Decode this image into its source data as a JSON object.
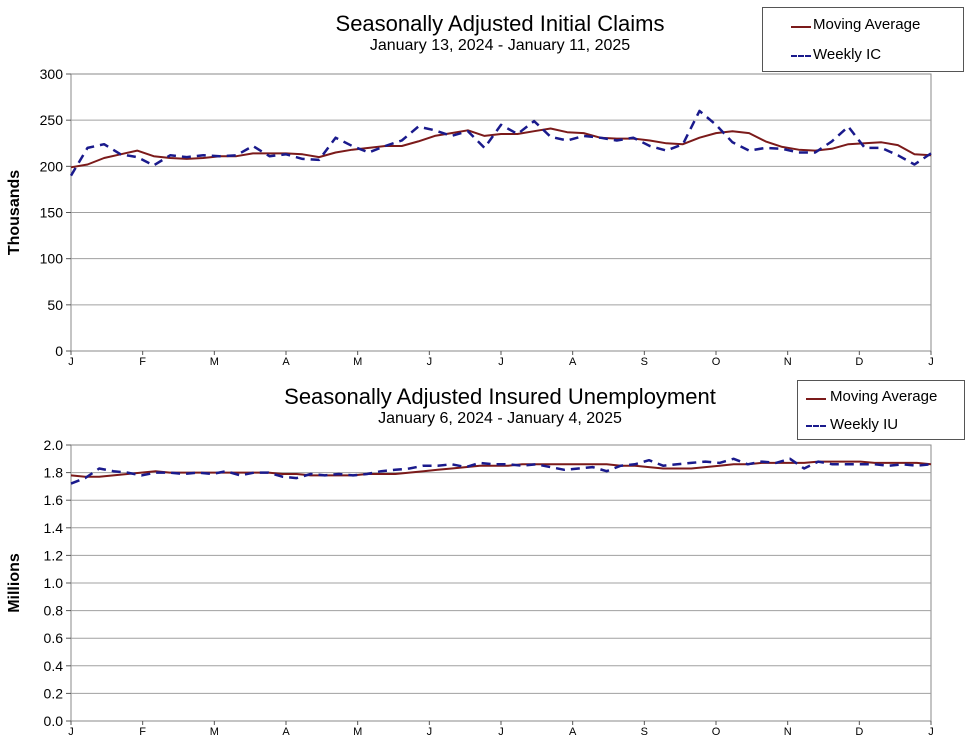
{
  "chart_data": [
    {
      "type": "line",
      "title": "Seasonally Adjusted Initial Claims",
      "subtitle": "January 13, 2024 - January 11, 2025",
      "ylabel": "Thousands",
      "ylim": [
        0,
        300
      ],
      "yticks": [
        "0",
        "50",
        "100",
        "150",
        "200",
        "250",
        "300"
      ],
      "ytick_values": [
        0,
        50,
        100,
        150,
        200,
        250,
        300
      ],
      "xticks": [
        "J",
        "F",
        "M",
        "A",
        "M",
        "J",
        "J",
        "A",
        "S",
        "O",
        "N",
        "D",
        "J"
      ],
      "grid": true,
      "legend": [
        "Moving Average",
        "Weekly IC"
      ],
      "colors": {
        "moving_average": "#7b1a1a",
        "weekly": "#1a1a8c"
      },
      "series": [
        {
          "name": "Moving Average",
          "values": [
            199,
            202,
            209,
            213,
            217,
            211,
            209,
            208,
            209,
            211,
            211,
            214,
            214,
            214,
            213,
            210,
            215,
            218,
            220,
            222,
            222,
            227,
            233,
            236,
            239,
            233,
            235,
            235,
            238,
            241,
            237,
            236,
            231,
            230,
            230,
            228,
            225,
            224,
            231,
            236,
            238,
            236,
            227,
            221,
            218,
            217,
            219,
            224,
            225,
            226,
            223,
            213,
            212
          ]
        },
        {
          "name": "Weekly IC",
          "values": [
            190,
            220,
            224,
            213,
            210,
            201,
            212,
            210,
            212,
            211,
            212,
            222,
            211,
            213,
            208,
            207,
            231,
            222,
            215,
            222,
            228,
            243,
            239,
            233,
            238,
            220,
            245,
            235,
            249,
            232,
            228,
            233,
            231,
            228,
            231,
            222,
            217,
            224,
            260,
            245,
            226,
            217,
            220,
            219,
            215,
            215,
            227,
            243,
            220,
            220,
            212,
            202,
            214
          ]
        }
      ]
    },
    {
      "type": "line",
      "title": "Seasonally Adjusted Insured Unemployment",
      "subtitle": "January 6, 2024 - January 4, 2025",
      "ylabel": "Millions",
      "ylim": [
        0,
        2.0
      ],
      "yticks": [
        "0.0",
        "0.2",
        "0.4",
        "0.6",
        "0.8",
        "1.0",
        "1.2",
        "1.4",
        "1.6",
        "1.8",
        "2.0"
      ],
      "ytick_values": [
        0,
        0.2,
        0.4,
        0.6,
        0.8,
        1.0,
        1.2,
        1.4,
        1.6,
        1.8,
        2.0
      ],
      "xticks": [
        "J",
        "F",
        "M",
        "A",
        "M",
        "J",
        "J",
        "A",
        "S",
        "O",
        "N",
        "D",
        "J"
      ],
      "grid": true,
      "legend": [
        "Moving Average",
        "Weekly IU"
      ],
      "colors": {
        "moving_average": "#7b1a1a",
        "weekly": "#1a1a8c"
      },
      "series": [
        {
          "name": "Moving Average",
          "values": [
            1.78,
            1.77,
            1.77,
            1.78,
            1.79,
            1.8,
            1.81,
            1.8,
            1.8,
            1.8,
            1.8,
            1.8,
            1.8,
            1.8,
            1.8,
            1.79,
            1.79,
            1.78,
            1.78,
            1.78,
            1.78,
            1.79,
            1.79,
            1.79,
            1.8,
            1.81,
            1.82,
            1.83,
            1.84,
            1.85,
            1.85,
            1.85,
            1.86,
            1.86,
            1.86,
            1.86,
            1.86,
            1.86,
            1.86,
            1.85,
            1.85,
            1.84,
            1.83,
            1.83,
            1.83,
            1.84,
            1.85,
            1.86,
            1.86,
            1.87,
            1.87,
            1.87,
            1.87,
            1.88,
            1.88,
            1.88,
            1.88,
            1.87,
            1.87,
            1.87,
            1.87,
            1.86
          ]
        },
        {
          "name": "Weekly IU",
          "values": [
            1.72,
            1.76,
            1.83,
            1.81,
            1.8,
            1.78,
            1.8,
            1.8,
            1.79,
            1.8,
            1.79,
            1.81,
            1.78,
            1.8,
            1.8,
            1.77,
            1.76,
            1.79,
            1.78,
            1.79,
            1.78,
            1.79,
            1.81,
            1.82,
            1.83,
            1.85,
            1.85,
            1.86,
            1.84,
            1.87,
            1.86,
            1.86,
            1.85,
            1.86,
            1.84,
            1.82,
            1.83,
            1.84,
            1.81,
            1.85,
            1.86,
            1.89,
            1.85,
            1.86,
            1.87,
            1.88,
            1.87,
            1.9,
            1.86,
            1.88,
            1.87,
            1.9,
            1.83,
            1.88,
            1.86,
            1.86,
            1.86,
            1.86,
            1.85,
            1.86,
            1.85,
            1.86
          ]
        }
      ]
    }
  ]
}
